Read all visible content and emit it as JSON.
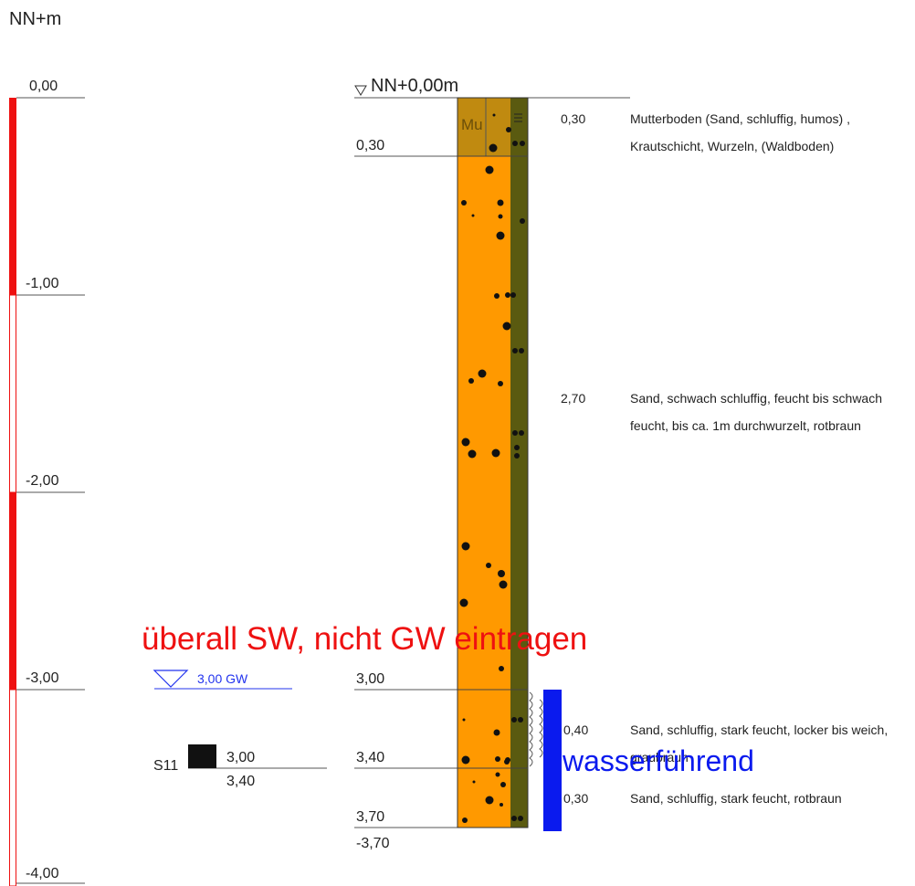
{
  "axis": {
    "unit_label": "NN+m",
    "ticks": [
      "0,00",
      "-1,00",
      "-2,00",
      "-3,00",
      "-4,00"
    ],
    "bar_color": "#ee1111"
  },
  "profile": {
    "top_label": "NN+0,00m",
    "depth_labels": [
      "0,30",
      "3,00",
      "3,40",
      "3,70"
    ],
    "bottom_label": "-3,70",
    "layers": [
      {
        "code": "Mu",
        "from": 0.0,
        "to": 0.3,
        "color": "#c08a10"
      },
      {
        "code": "",
        "from": 0.3,
        "to": 3.0,
        "color": "#ff9900"
      },
      {
        "code": "",
        "from": 3.0,
        "to": 3.4,
        "color": "#ff9900"
      },
      {
        "code": "",
        "from": 3.4,
        "to": 3.7,
        "color": "#ff9900"
      }
    ],
    "moisture_color": "#5a5a10"
  },
  "layer_descriptions": [
    {
      "thickness": "0,30",
      "text": "Mutterboden (Sand, schluffig, humos) , Krautschicht, Wurzeln, (Waldboden)"
    },
    {
      "thickness": "2,70",
      "text": "Sand, schwach schluffig, feucht bis schwach feucht, bis ca. 1m durchwurzelt, rotbraun"
    },
    {
      "thickness": "0,40",
      "text": "Sand, schluffig, stark feucht, locker bis weich, graubraun"
    },
    {
      "thickness": "0,30",
      "text": "Sand, schluffig, stark feucht, rotbraun"
    }
  ],
  "groundwater": {
    "label": "3,00 GW",
    "color": "#2233ee"
  },
  "sample": {
    "name": "S11",
    "from": "3,00",
    "to": "3,40"
  },
  "annotations": {
    "red_note": "überall SW, nicht GW eintragen",
    "red_color": "#ee1111",
    "blue_note": "wasserführend",
    "blue_color": "#0a1aee"
  }
}
